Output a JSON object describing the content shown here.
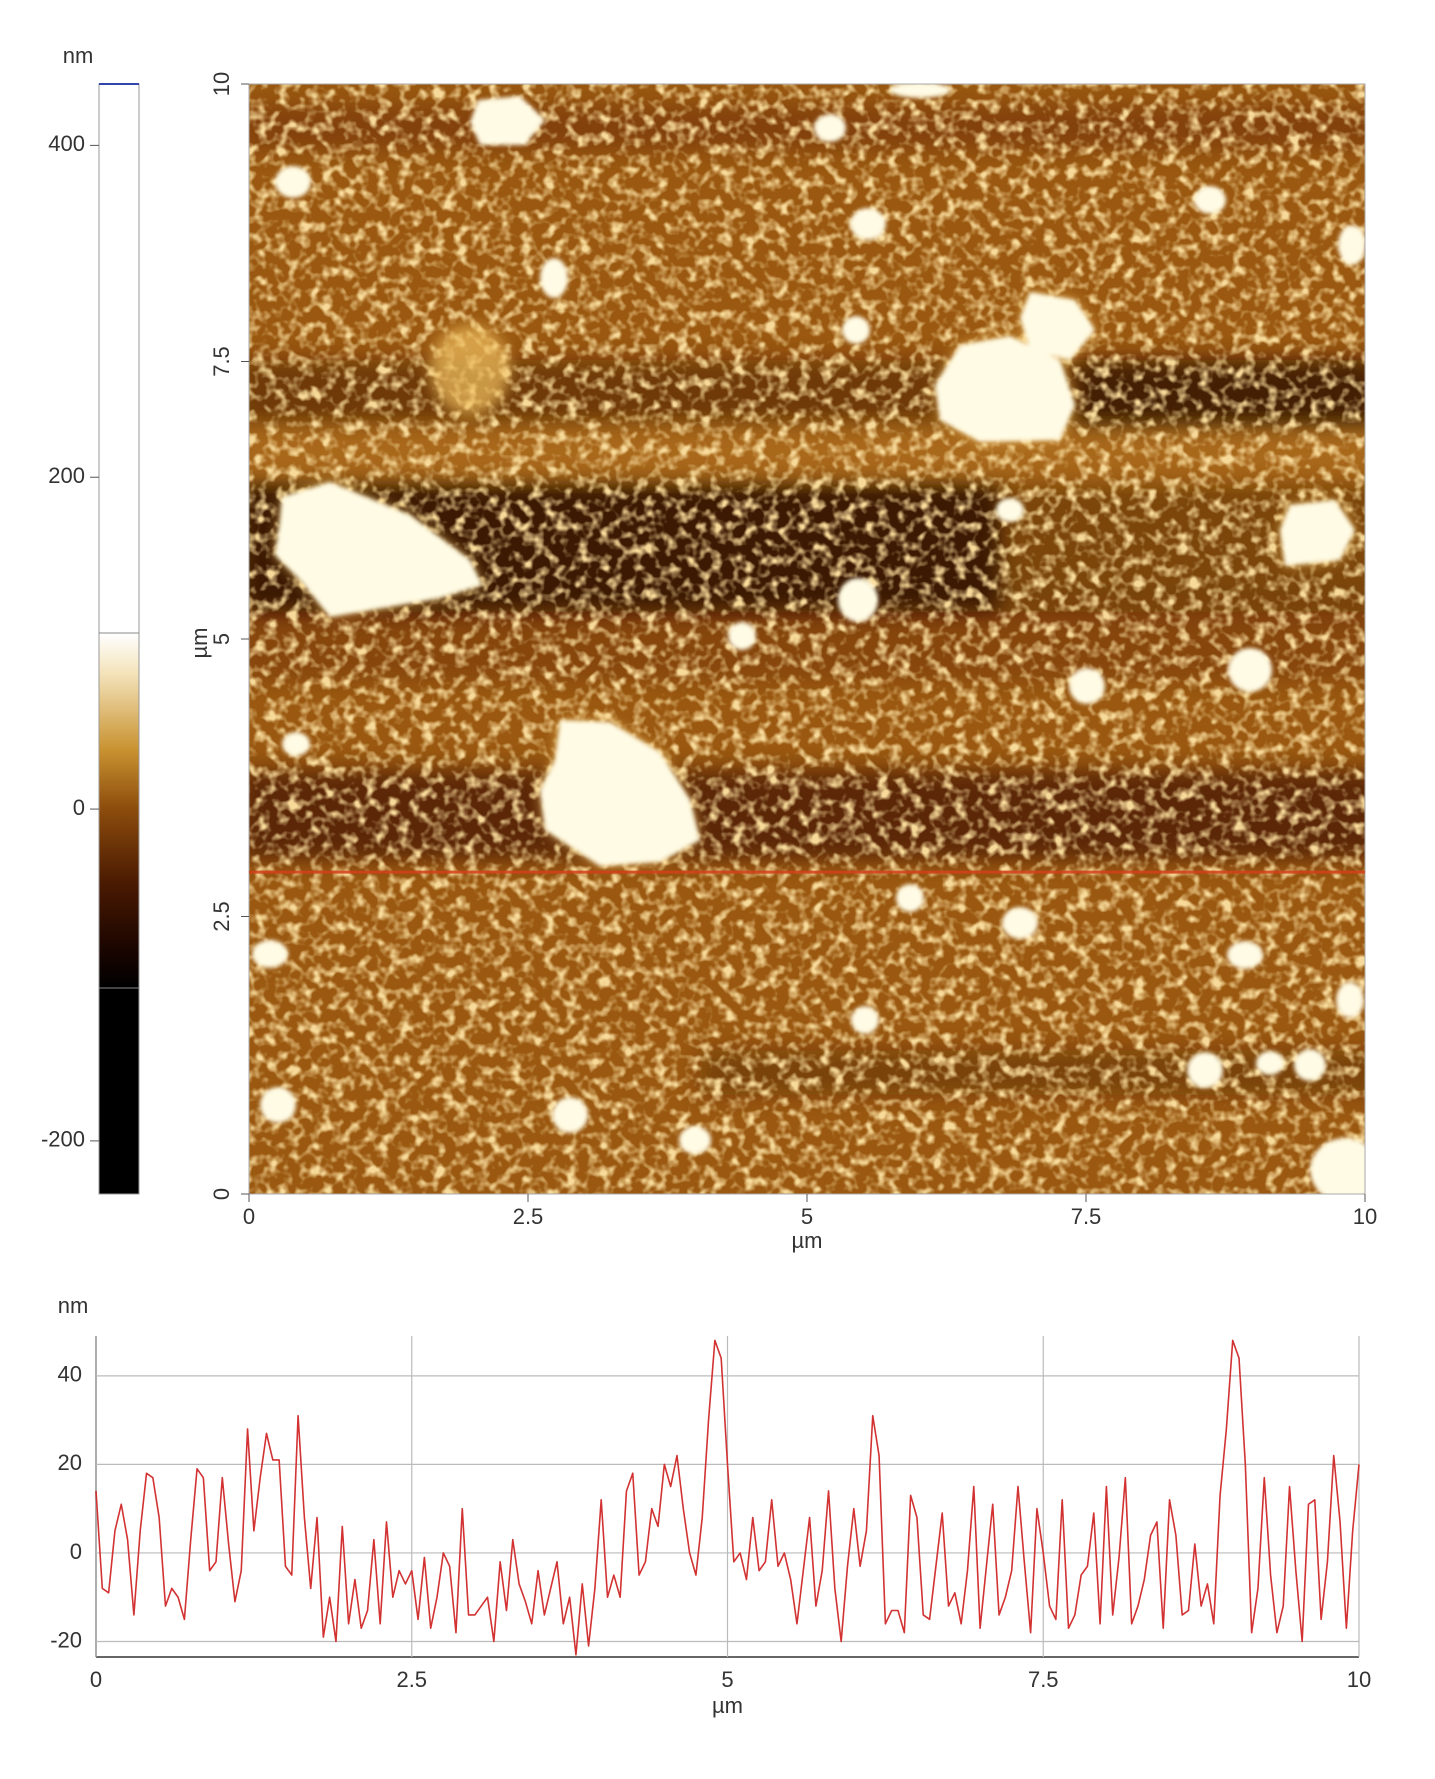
{
  "chart_data": [
    {
      "type": "colorbar",
      "ylabel": "nm",
      "ylim": [
        -232,
        437
      ],
      "yticks": [
        400,
        200,
        0,
        -200
      ]
    },
    {
      "type": "image",
      "xlabel": "µm",
      "ylabel": "µm",
      "xlim": [
        0,
        10
      ],
      "ylim": [
        0,
        10
      ],
      "xticks": [
        0,
        2.5,
        5,
        7.5,
        10
      ],
      "yticks": [
        0,
        2.5,
        5,
        7.5,
        10
      ],
      "profile_y": 2.9,
      "profile_color": "#d4401a"
    },
    {
      "type": "line",
      "xlabel": "µm",
      "ylabel": "nm",
      "xlim": [
        0,
        10
      ],
      "ylim": [
        -23.5,
        49
      ],
      "xticks": [
        0,
        2.5,
        5,
        7.5,
        10
      ],
      "yticks": [
        40,
        20,
        0,
        -20
      ],
      "grid": true,
      "color": "#d23232",
      "x": [
        0,
        0.05,
        0.1,
        0.15,
        0.2,
        0.25,
        0.3,
        0.35,
        0.4,
        0.45,
        0.5,
        0.55,
        0.6,
        0.65,
        0.7,
        0.75,
        0.8,
        0.85,
        0.9,
        0.95,
        1,
        1.05,
        1.1,
        1.15,
        1.2,
        1.25,
        1.3,
        1.35,
        1.4,
        1.45,
        1.5,
        1.55,
        1.6,
        1.65,
        1.7,
        1.75,
        1.8,
        1.85,
        1.9,
        1.95,
        2,
        2.05,
        2.1,
        2.15,
        2.2,
        2.25,
        2.3,
        2.35,
        2.4,
        2.45,
        2.5,
        2.55,
        2.6,
        2.65,
        2.7,
        2.75,
        2.8,
        2.85,
        2.9,
        2.95,
        3,
        3.05,
        3.1,
        3.15,
        3.2,
        3.25,
        3.3,
        3.35,
        3.4,
        3.45,
        3.5,
        3.55,
        3.6,
        3.65,
        3.7,
        3.75,
        3.8,
        3.85,
        3.9,
        3.95,
        4,
        4.05,
        4.1,
        4.15,
        4.2,
        4.25,
        4.3,
        4.35,
        4.4,
        4.45,
        4.5,
        4.55,
        4.6,
        4.65,
        4.7,
        4.75,
        4.8,
        4.85,
        4.9,
        4.95,
        5,
        5.05,
        5.1,
        5.15,
        5.2,
        5.25,
        5.3,
        5.35,
        5.4,
        5.45,
        5.5,
        5.55,
        5.6,
        5.65,
        5.7,
        5.75,
        5.8,
        5.85,
        5.9,
        5.95,
        6,
        6.05,
        6.1,
        6.15,
        6.2,
        6.25,
        6.3,
        6.35,
        6.4,
        6.45,
        6.5,
        6.55,
        6.6,
        6.65,
        6.7,
        6.75,
        6.8,
        6.85,
        6.9,
        6.95,
        7,
        7.05,
        7.1,
        7.15,
        7.2,
        7.25,
        7.3,
        7.35,
        7.4,
        7.45,
        7.5,
        7.55,
        7.6,
        7.65,
        7.7,
        7.75,
        7.8,
        7.85,
        7.9,
        7.95,
        8,
        8.05,
        8.1,
        8.15,
        8.2,
        8.25,
        8.3,
        8.35,
        8.4,
        8.45,
        8.5,
        8.55,
        8.6,
        8.65,
        8.7,
        8.75,
        8.8,
        8.85,
        8.9,
        8.95,
        9,
        9.05,
        9.1,
        9.15,
        9.2,
        9.25,
        9.3,
        9.35,
        9.4,
        9.45,
        9.5,
        9.55,
        9.6,
        9.65,
        9.7,
        9.75,
        9.8,
        9.85,
        9.9,
        9.95,
        10
      ],
      "values": [
        14,
        -8,
        -9,
        5,
        11,
        3,
        -14,
        5,
        18,
        17,
        8,
        -12,
        -8,
        -10,
        -15,
        3,
        19,
        17,
        -4,
        -2,
        17,
        2,
        -11,
        -4,
        28,
        5,
        17,
        27,
        21,
        21,
        -3,
        -5,
        31,
        8,
        -8,
        8,
        -19,
        -10,
        -20,
        6,
        -16,
        -6,
        -17,
        -13,
        3,
        -16,
        7,
        -10,
        -4,
        -7,
        -4,
        -15,
        -1,
        -17,
        -10,
        0,
        -3,
        -18,
        10,
        -14,
        -14,
        -12,
        -10,
        -20,
        -2,
        -13,
        3,
        -7,
        -11,
        -16,
        -4,
        -14,
        -8,
        -2,
        -16,
        -10,
        -23,
        -7,
        -21,
        -8,
        12,
        -10,
        -5,
        -10,
        14,
        18,
        -5,
        -2,
        10,
        6,
        20,
        15,
        22,
        10,
        0,
        -5,
        8,
        30,
        48,
        44,
        20,
        -2,
        0,
        -6,
        8,
        -4,
        -2,
        12,
        -3,
        0,
        -6,
        -16,
        -4,
        8,
        -12,
        -4,
        14,
        -8,
        -20,
        -3,
        10,
        -3,
        5,
        31,
        22,
        -16,
        -13,
        -13,
        -18,
        13,
        8,
        -14,
        -15,
        -3,
        9,
        -12,
        -9,
        -16,
        -4,
        15,
        -17,
        -3,
        11,
        -14,
        -10,
        -4,
        15,
        -2,
        -18,
        10,
        0,
        -12,
        -15,
        12,
        -17,
        -14,
        -5,
        -3,
        9,
        -16,
        15,
        -14,
        -1,
        17,
        -16,
        -12,
        -6,
        4,
        7,
        -17,
        12,
        4,
        -14,
        -13,
        2,
        -12,
        -7,
        -16,
        13,
        28,
        48,
        44,
        20,
        -18,
        -8,
        17,
        -5,
        -18,
        -12,
        15,
        -4,
        -20,
        11,
        12,
        -15,
        -2,
        22,
        7,
        -17,
        5,
        20
      ]
    }
  ]
}
